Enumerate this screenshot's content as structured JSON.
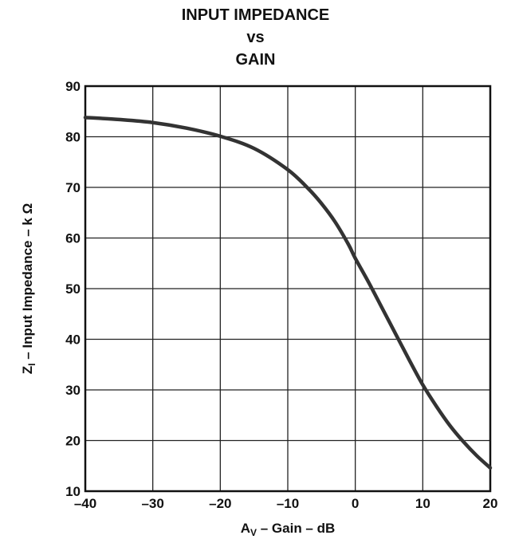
{
  "chart_data": {
    "type": "line",
    "title": [
      "INPUT IMPEDANCE",
      "vs",
      "GAIN"
    ],
    "xlabel": {
      "main": "A",
      "sub": "V",
      "rest": " – Gain – dB"
    },
    "ylabel": {
      "main": "Z",
      "sub": "I",
      "rest": " – Input Impedance – k Ω"
    },
    "xlim": [
      -40,
      20
    ],
    "ylim": [
      10,
      90
    ],
    "xticks": [
      -40,
      -30,
      -20,
      -10,
      0,
      10,
      20
    ],
    "xtick_labels": [
      "–40",
      "–30",
      "–20",
      "–10",
      "0",
      "10",
      "20"
    ],
    "yticks": [
      10,
      20,
      30,
      40,
      50,
      60,
      70,
      80,
      90
    ],
    "ytick_labels": [
      "10",
      "20",
      "30",
      "40",
      "50",
      "60",
      "70",
      "80",
      "90"
    ],
    "grid": true,
    "series": [
      {
        "color": "#333333",
        "x": [
          -40,
          -35,
          -30,
          -25,
          -20,
          -15,
          -10,
          -7,
          -5,
          -3,
          -1,
          0,
          2,
          4,
          6,
          8,
          10,
          12,
          14,
          16,
          18,
          20
        ],
        "y": [
          83.8,
          83.4,
          82.8,
          81.7,
          80.1,
          77.7,
          73.5,
          69.8,
          66.8,
          63.2,
          58.7,
          56.0,
          51.2,
          46.1,
          41.0,
          35.9,
          31.0,
          26.8,
          23.0,
          19.8,
          17.0,
          14.6
        ]
      }
    ]
  }
}
